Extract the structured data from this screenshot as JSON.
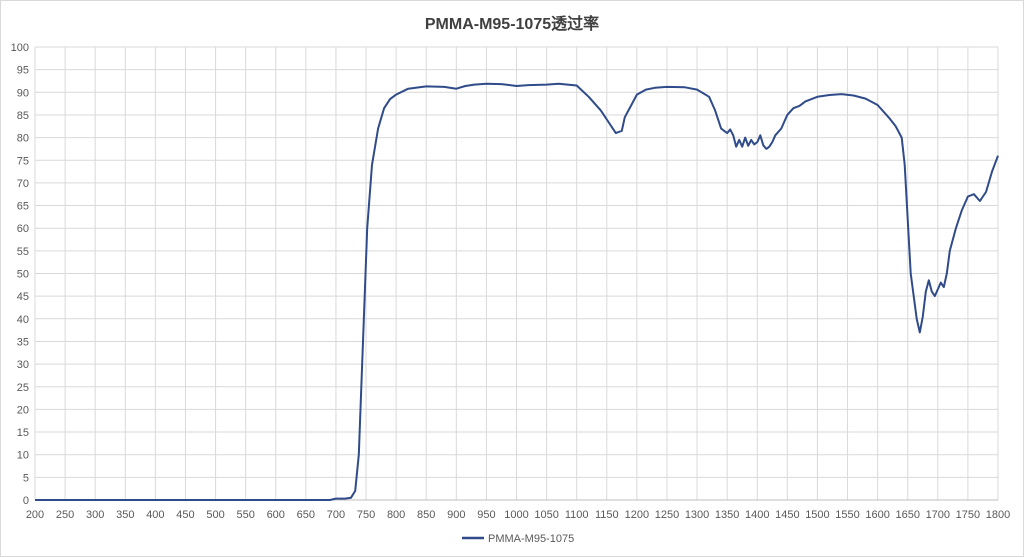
{
  "chart_data": {
    "type": "line",
    "title": "PMMA-M95-1075透过率",
    "xlabel": "",
    "ylabel": "",
    "xlim": [
      200,
      1800
    ],
    "ylim": [
      0,
      100
    ],
    "xticks": [
      "200",
      "250",
      "300",
      "350",
      "400",
      "450",
      "500",
      "550",
      "600",
      "650",
      "700",
      "750",
      "800",
      "850",
      "900",
      "950",
      "1000",
      "1050",
      "1100",
      "1150",
      "1200",
      "1250",
      "1300",
      "1350",
      "1400",
      "1450",
      "1500",
      "1550",
      "1600",
      "1650",
      "1700",
      "1750",
      "1800"
    ],
    "yticks": [
      "0",
      "5",
      "10",
      "15",
      "20",
      "25",
      "30",
      "35",
      "40",
      "45",
      "50",
      "55",
      "60",
      "65",
      "70",
      "75",
      "80",
      "85",
      "90",
      "95",
      "100"
    ],
    "grid": true,
    "legend_position": "bottom",
    "series": [
      {
        "name": "PMMA-M95-1075",
        "color": "#2f4b8a",
        "x": [
          200,
          650,
          690,
          700,
          715,
          725,
          732,
          738,
          745,
          752,
          760,
          770,
          780,
          790,
          800,
          820,
          850,
          880,
          900,
          915,
          930,
          950,
          975,
          1000,
          1020,
          1050,
          1070,
          1100,
          1120,
          1140,
          1155,
          1165,
          1175,
          1180,
          1190,
          1200,
          1215,
          1230,
          1250,
          1280,
          1300,
          1320,
          1330,
          1340,
          1345,
          1350,
          1355,
          1360,
          1365,
          1370,
          1375,
          1380,
          1385,
          1390,
          1395,
          1400,
          1405,
          1410,
          1415,
          1420,
          1425,
          1430,
          1440,
          1450,
          1460,
          1470,
          1480,
          1500,
          1520,
          1540,
          1560,
          1580,
          1600,
          1620,
          1630,
          1640,
          1645,
          1650,
          1655,
          1660,
          1665,
          1670,
          1675,
          1680,
          1685,
          1690,
          1695,
          1700,
          1705,
          1710,
          1715,
          1720,
          1730,
          1740,
          1750,
          1760,
          1770,
          1780,
          1790,
          1800
        ],
        "y": [
          0,
          0,
          0,
          0.3,
          0.3,
          0.5,
          2,
          10,
          35,
          60,
          74,
          82,
          86.5,
          88.5,
          89.5,
          90.8,
          91.3,
          91.2,
          90.8,
          91.4,
          91.7,
          91.9,
          91.8,
          91.4,
          91.6,
          91.7,
          91.9,
          91.5,
          89,
          86,
          83,
          81,
          81.5,
          84.5,
          87,
          89.5,
          90.6,
          91,
          91.2,
          91.1,
          90.6,
          89,
          86,
          82,
          81.5,
          81,
          81.8,
          80.5,
          78,
          79.5,
          78,
          80,
          78.2,
          79.5,
          78.5,
          79,
          80.5,
          78.3,
          77.5,
          78,
          79,
          80.5,
          82,
          85,
          86.5,
          87,
          88,
          89,
          89.4,
          89.6,
          89.3,
          88.6,
          87.2,
          84.2,
          82.5,
          80,
          74,
          62,
          50,
          45,
          40,
          37,
          40.5,
          46,
          48.5,
          46,
          45,
          46.5,
          48,
          47,
          50,
          55,
          60,
          64,
          67,
          67.5,
          66,
          68,
          72.5,
          76
        ]
      }
    ]
  }
}
